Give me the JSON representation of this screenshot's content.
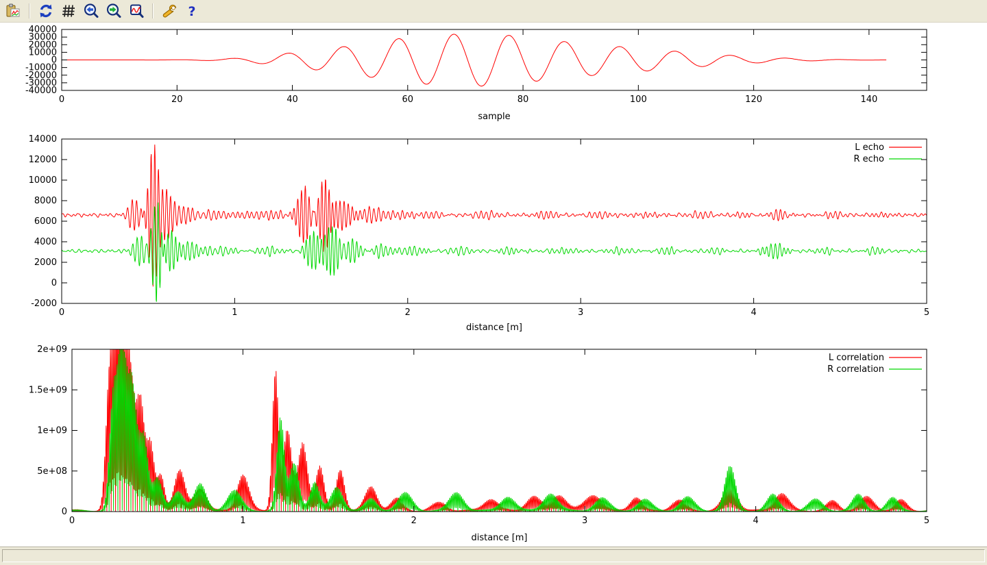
{
  "window": {
    "status_text": ""
  },
  "toolbar": {
    "icons": [
      "copy-plot",
      "replot",
      "grid",
      "zoom-previous",
      "zoom-next",
      "autoscale",
      "configure",
      "help"
    ]
  },
  "colors": {
    "l_series": "#ff0000",
    "r_series": "#00d800",
    "axis": "#000000",
    "chrome": "#ece9d8"
  },
  "chart_data": [
    {
      "id": "ping-waveform",
      "type": "line",
      "title": "",
      "xlabel": "sample",
      "xlim": [
        0,
        150
      ],
      "ylim": [
        -40000,
        40000
      ],
      "xticks": {
        "values": [
          0,
          20,
          40,
          60,
          80,
          100,
          120,
          140
        ],
        "labels": [
          "0",
          "20",
          "40",
          "60",
          "80",
          "100",
          "120",
          "140"
        ]
      },
      "yticks": {
        "values": [
          -40000,
          -30000,
          -20000,
          -10000,
          0,
          10000,
          20000,
          30000,
          40000
        ],
        "labels": [
          "-40000",
          "-30000",
          "-20000",
          "-10000",
          "0",
          "10000",
          "20000",
          "30000",
          "40000"
        ]
      },
      "grid": false,
      "legend": null,
      "series": [
        {
          "name": "",
          "color": "#ff0000",
          "generator": {
            "kind": "ping",
            "x_start": 0,
            "x_end": 143,
            "dx": 0.25,
            "carrier_period": 9.6,
            "carrier_peak_x": 68,
            "envelope": [
              [
                0,
                0
              ],
              [
                16,
                60
              ],
              [
                20,
                250
              ],
              [
                24,
                600
              ],
              [
                28,
                1400
              ],
              [
                32,
                3000
              ],
              [
                36,
                6000
              ],
              [
                40,
                9500
              ],
              [
                44,
                13000
              ],
              [
                48,
                16500
              ],
              [
                52,
                21000
              ],
              [
                56,
                25500
              ],
              [
                60,
                29500
              ],
              [
                64,
                32500
              ],
              [
                68,
                33800
              ],
              [
                72,
                34600
              ],
              [
                76,
                33800
              ],
              [
                80,
                30000
              ],
              [
                84,
                26500
              ],
              [
                88,
                23500
              ],
              [
                92,
                20500
              ],
              [
                96,
                18000
              ],
              [
                100,
                15500
              ],
              [
                104,
                13000
              ],
              [
                108,
                10500
              ],
              [
                112,
                8200
              ],
              [
                116,
                6000
              ],
              [
                120,
                4200
              ],
              [
                124,
                2800
              ],
              [
                128,
                1700
              ],
              [
                132,
                900
              ],
              [
                136,
                400
              ],
              [
                140,
                180
              ],
              [
                143,
                100
              ]
            ]
          }
        }
      ]
    },
    {
      "id": "echo",
      "type": "line",
      "title": "",
      "xlabel": "distance [m]",
      "xlim": [
        0,
        5
      ],
      "ylim": [
        -2000,
        14000
      ],
      "xticks": {
        "values": [
          0,
          1,
          2,
          3,
          4,
          5
        ],
        "labels": [
          "0",
          "1",
          "2",
          "3",
          "4",
          "5"
        ]
      },
      "yticks": {
        "values": [
          -2000,
          0,
          2000,
          4000,
          6000,
          8000,
          10000,
          12000,
          14000
        ],
        "labels": [
          "-2000",
          "0",
          "2000",
          "4000",
          "6000",
          "8000",
          "10000",
          "12000",
          "14000"
        ]
      },
      "grid": false,
      "legend": "top-right",
      "series": [
        {
          "name": "L echo",
          "color": "#ff0000",
          "generator": {
            "kind": "echo",
            "x_start": 0,
            "x_end": 5,
            "dx": 0.002,
            "baseline": 6600,
            "noise": [
              [
                90,
                0.031,
                0.5
              ],
              [
                70,
                0.047,
                2.1
              ],
              [
                45,
                0.019,
                4.0
              ],
              [
                40,
                0.083,
                1.0
              ]
            ],
            "default_period": 0.025,
            "packets": [
              [
                0.42,
                0.045,
                1500,
                0.026
              ],
              [
                0.53,
                0.035,
                6900,
                0.021
              ],
              [
                0.6,
                0.045,
                2600,
                0.023
              ],
              [
                0.7,
                0.07,
                900,
                0.026
              ],
              [
                0.85,
                0.1,
                420,
                0.03
              ],
              [
                1.05,
                0.12,
                380,
                0.028
              ],
              [
                1.25,
                0.08,
                380,
                0.028
              ],
              [
                1.4,
                0.045,
                2900,
                0.022
              ],
              [
                1.52,
                0.045,
                3700,
                0.021
              ],
              [
                1.63,
                0.06,
                1500,
                0.024
              ],
              [
                1.78,
                0.08,
                700,
                0.027
              ],
              [
                1.95,
                0.09,
                450,
                0.028
              ],
              [
                2.15,
                0.08,
                350,
                0.03
              ],
              [
                2.45,
                0.08,
                300,
                0.03
              ],
              [
                2.78,
                0.08,
                360,
                0.028
              ],
              [
                3.1,
                0.08,
                300,
                0.03
              ],
              [
                3.4,
                0.07,
                320,
                0.028
              ],
              [
                3.7,
                0.07,
                280,
                0.03
              ],
              [
                3.95,
                0.06,
                280,
                0.028
              ],
              [
                4.15,
                0.06,
                480,
                0.026
              ],
              [
                4.45,
                0.07,
                300,
                0.028
              ],
              [
                4.75,
                0.06,
                300,
                0.028
              ]
            ]
          }
        },
        {
          "name": "R echo",
          "color": "#00d800",
          "generator": {
            "kind": "echo",
            "x_start": 0,
            "x_end": 5,
            "dx": 0.002,
            "baseline": 3100,
            "noise": [
              [
                85,
                0.033,
                1.7
              ],
              [
                65,
                0.045,
                0.3
              ],
              [
                45,
                0.021,
                2.6
              ],
              [
                35,
                0.079,
                4.2
              ]
            ],
            "default_period": 0.025,
            "packets": [
              [
                0.45,
                0.05,
                1400,
                0.026
              ],
              [
                0.55,
                0.035,
                5200,
                0.021
              ],
              [
                0.63,
                0.05,
                2200,
                0.023
              ],
              [
                0.75,
                0.08,
                800,
                0.026
              ],
              [
                0.95,
                0.1,
                400,
                0.03
              ],
              [
                1.2,
                0.1,
                350,
                0.028
              ],
              [
                1.45,
                0.05,
                1900,
                0.022
              ],
              [
                1.56,
                0.05,
                2500,
                0.021
              ],
              [
                1.68,
                0.07,
                1100,
                0.024
              ],
              [
                1.85,
                0.09,
                550,
                0.027
              ],
              [
                2.05,
                0.08,
                400,
                0.028
              ],
              [
                2.3,
                0.08,
                320,
                0.03
              ],
              [
                2.6,
                0.08,
                300,
                0.028
              ],
              [
                2.9,
                0.07,
                320,
                0.028
              ],
              [
                3.2,
                0.08,
                300,
                0.03
              ],
              [
                3.5,
                0.07,
                300,
                0.028
              ],
              [
                3.8,
                0.07,
                280,
                0.03
              ],
              [
                4.12,
                0.07,
                750,
                0.025
              ],
              [
                4.4,
                0.06,
                300,
                0.028
              ],
              [
                4.7,
                0.06,
                320,
                0.028
              ]
            ]
          }
        }
      ]
    },
    {
      "id": "correlation",
      "type": "line",
      "title": "",
      "xlabel": "distance [m]",
      "xlim": [
        0,
        5
      ],
      "ylim": [
        0,
        2000000000
      ],
      "xticks": {
        "values": [
          0,
          1,
          2,
          3,
          4,
          5
        ],
        "labels": [
          "0",
          "1",
          "2",
          "3",
          "4",
          "5"
        ]
      },
      "yticks": {
        "values": [
          0,
          500000000,
          1000000000,
          1500000000,
          2000000000
        ],
        "labels": [
          "0",
          "5e+08",
          "1e+09",
          "1.5e+09",
          "2e+09"
        ]
      },
      "grid": false,
      "legend": "top-right",
      "series": [
        {
          "name": "L correlation",
          "color": "#ff0000",
          "generator": {
            "kind": "correlation",
            "x_start": 0,
            "x_end": 5,
            "dx": 0.0015,
            "tooth_period": 0.017,
            "tooth_phase": 0.0,
            "floor": [
              14000000,
              11000000,
              0.21
            ],
            "bumps": [
              [
                0.22,
                0.03,
                1600000000.0
              ],
              [
                0.27,
                0.035,
                2300000000.0
              ],
              [
                0.33,
                0.04,
                2000000000.0
              ],
              [
                0.4,
                0.035,
                1350000000.0
              ],
              [
                0.46,
                0.03,
                800000000.0
              ],
              [
                0.52,
                0.03,
                450000000.0
              ],
              [
                0.63,
                0.045,
                500000000.0
              ],
              [
                0.75,
                0.05,
                280000000.0
              ],
              [
                1.0,
                0.05,
                450000000.0
              ],
              [
                1.19,
                0.025,
                1750000000.0
              ],
              [
                1.26,
                0.035,
                1000000000.0
              ],
              [
                1.35,
                0.04,
                850000000.0
              ],
              [
                1.45,
                0.035,
                550000000.0
              ],
              [
                1.57,
                0.035,
                520000000.0
              ],
              [
                1.75,
                0.05,
                300000000.0
              ],
              [
                1.9,
                0.05,
                150000000.0
              ],
              [
                2.15,
                0.06,
                100000000.0
              ],
              [
                2.45,
                0.06,
                150000000.0
              ],
              [
                2.7,
                0.06,
                180000000.0
              ],
              [
                2.85,
                0.06,
                200000000.0
              ],
              [
                3.05,
                0.07,
                200000000.0
              ],
              [
                3.3,
                0.05,
                170000000.0
              ],
              [
                3.55,
                0.06,
                130000000.0
              ],
              [
                3.85,
                0.06,
                270000000.0
              ],
              [
                4.15,
                0.06,
                220000000.0
              ],
              [
                4.45,
                0.05,
                120000000.0
              ],
              [
                4.65,
                0.06,
                170000000.0
              ],
              [
                4.85,
                0.05,
                130000000.0
              ]
            ]
          }
        },
        {
          "name": "R correlation",
          "color": "#00d800",
          "generator": {
            "kind": "correlation",
            "x_start": 0,
            "x_end": 5,
            "dx": 0.0015,
            "tooth_period": 0.017,
            "tooth_phase": 1.3,
            "floor": [
              13000000,
              10000000,
              0.24
            ],
            "bumps": [
              [
                0.24,
                0.03,
                1300000000.0
              ],
              [
                0.29,
                0.035,
                1900000000.0
              ],
              [
                0.35,
                0.04,
                1600000000.0
              ],
              [
                0.42,
                0.035,
                900000000.0
              ],
              [
                0.5,
                0.04,
                400000000.0
              ],
              [
                0.62,
                0.05,
                250000000.0
              ],
              [
                0.75,
                0.05,
                330000000.0
              ],
              [
                0.95,
                0.06,
                250000000.0
              ],
              [
                1.22,
                0.03,
                1150000000.0
              ],
              [
                1.3,
                0.04,
                600000000.0
              ],
              [
                1.42,
                0.04,
                350000000.0
              ],
              [
                1.55,
                0.05,
                300000000.0
              ],
              [
                1.75,
                0.05,
                150000000.0
              ],
              [
                1.95,
                0.06,
                220000000.0
              ],
              [
                2.25,
                0.06,
                230000000.0
              ],
              [
                2.55,
                0.06,
                180000000.0
              ],
              [
                2.8,
                0.06,
                220000000.0
              ],
              [
                3.1,
                0.06,
                160000000.0
              ],
              [
                3.35,
                0.06,
                140000000.0
              ],
              [
                3.6,
                0.06,
                170000000.0
              ],
              [
                3.85,
                0.045,
                550000000.0
              ],
              [
                4.1,
                0.05,
                200000000.0
              ],
              [
                4.35,
                0.06,
                140000000.0
              ],
              [
                4.6,
                0.05,
                200000000.0
              ],
              [
                4.8,
                0.05,
                160000000.0
              ]
            ]
          }
        }
      ]
    }
  ]
}
